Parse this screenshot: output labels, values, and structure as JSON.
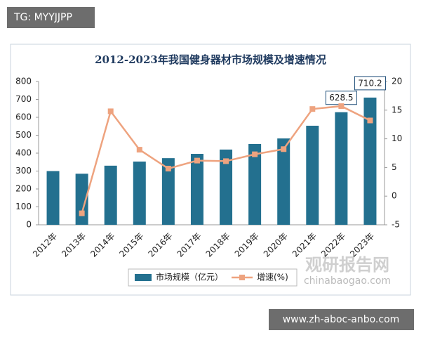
{
  "tag": "TG: MYYJJPP",
  "footer_tag": "www.zh-aboc-anbo.com",
  "watermark": {
    "name": "观研报告网",
    "site": "chinabaogao.com"
  },
  "chart_data": {
    "type": "bar",
    "title": "2012-2023年我国健身器材市场规模及增速情况",
    "categories": [
      "2012年",
      "2013年",
      "2014年",
      "2015年",
      "2016年",
      "2017年",
      "2018年",
      "2019年",
      "2020年",
      "2021年",
      "2022年",
      "2023年"
    ],
    "series": [
      {
        "name": "市场规模（亿元）",
        "type": "bar",
        "color": "#23708f",
        "values": [
          300,
          285,
          330,
          353,
          372,
          396,
          420,
          451,
          482,
          553,
          628.5,
          710.2
        ],
        "value_labels": [
          null,
          null,
          null,
          null,
          null,
          null,
          null,
          null,
          null,
          null,
          "628.5",
          "710.2"
        ]
      },
      {
        "name": "增速(%)",
        "type": "line",
        "axis": "y2",
        "color": "#eea37f",
        "values": [
          null,
          -3,
          14.8,
          8.1,
          4.8,
          6.2,
          6.1,
          7.3,
          8.2,
          15.2,
          15.7,
          13.2
        ]
      }
    ],
    "ylim": [
      0,
      800
    ],
    "yticks": [
      0,
      100,
      200,
      300,
      400,
      500,
      600,
      700,
      800
    ],
    "y2lim": [
      -5,
      20
    ],
    "y2ticks": [
      -5,
      0,
      5,
      10,
      15,
      20
    ],
    "grid": false,
    "legend": "bottom"
  }
}
